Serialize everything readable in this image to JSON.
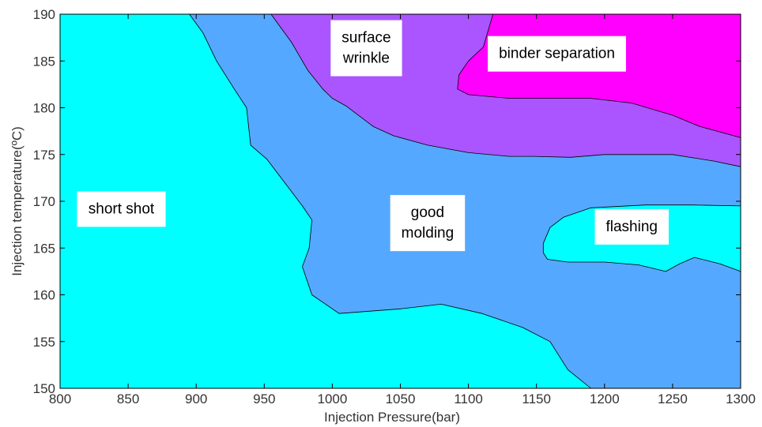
{
  "chart_data": {
    "type": "contour",
    "title": "",
    "xlabel": "Injection Pressure(bar)",
    "ylabel": "Injection temperature(ºC)",
    "xlim": [
      800,
      1300
    ],
    "ylim": [
      150,
      190
    ],
    "x_ticks": [
      800,
      850,
      900,
      950,
      1000,
      1050,
      1100,
      1150,
      1200,
      1250,
      1300
    ],
    "y_ticks": [
      150,
      155,
      160,
      165,
      170,
      175,
      180,
      185,
      190
    ],
    "grid": false,
    "regions": [
      {
        "name": "good molding",
        "label_lines": [
          "good",
          "molding"
        ],
        "color": "#55a8ff",
        "label_anchor": [
          1070,
          168.3
        ],
        "boundary": []
      },
      {
        "name": "short shot",
        "label_lines": [
          "short shot"
        ],
        "color": "#00ffff",
        "label_anchor": [
          845,
          168.7
        ],
        "boundary": [
          [
            800,
            150
          ],
          [
            800,
            190
          ],
          [
            895,
            190
          ],
          [
            905,
            188
          ],
          [
            915,
            185
          ],
          [
            928,
            182
          ],
          [
            937,
            180
          ],
          [
            940,
            176
          ],
          [
            952,
            174.5
          ],
          [
            965,
            172
          ],
          [
            978,
            169.5
          ],
          [
            985,
            168
          ],
          [
            983,
            165
          ],
          [
            978,
            163
          ],
          [
            985,
            160
          ],
          [
            1005,
            158
          ],
          [
            1050,
            158.5
          ],
          [
            1080,
            159
          ],
          [
            1110,
            158
          ],
          [
            1140,
            156.5
          ],
          [
            1160,
            155
          ],
          [
            1173,
            152
          ],
          [
            1190,
            150
          ]
        ]
      },
      {
        "name": "surface wrinkle",
        "label_lines": [
          "surface",
          "wrinkle"
        ],
        "color": "#aa55ff",
        "label_anchor": [
          1025,
          187
        ],
        "boundary": [
          [
            955,
            190
          ],
          [
            1300,
            190
          ],
          [
            1300,
            173.7
          ],
          [
            1280,
            174.3
          ],
          [
            1250,
            175
          ],
          [
            1200,
            175
          ],
          [
            1175,
            174.7
          ],
          [
            1148,
            174.8
          ],
          [
            1130,
            174.8
          ],
          [
            1100,
            175.2
          ],
          [
            1070,
            176
          ],
          [
            1045,
            177
          ],
          [
            1030,
            178
          ],
          [
            1010,
            180.2
          ],
          [
            1000,
            181
          ],
          [
            993,
            182
          ],
          [
            982,
            184
          ],
          [
            970,
            187
          ]
        ]
      },
      {
        "name": "binder separation",
        "label_lines": [
          "binder separation"
        ],
        "color": "#ff00ff",
        "label_anchor": [
          1165,
          185.3
        ],
        "boundary": [
          [
            1118,
            190
          ],
          [
            1300,
            190
          ],
          [
            1300,
            176.8
          ],
          [
            1270,
            178
          ],
          [
            1250,
            179.2
          ],
          [
            1220,
            180.5
          ],
          [
            1190,
            181
          ],
          [
            1155,
            181
          ],
          [
            1130,
            181
          ],
          [
            1100,
            181.4
          ],
          [
            1092,
            182
          ],
          [
            1093,
            183.5
          ],
          [
            1100,
            185
          ],
          [
            1111,
            186.5
          ],
          [
            1115,
            188.5
          ]
        ]
      },
      {
        "name": "flashing",
        "label_lines": [
          "flashing"
        ],
        "color": "#00ffff",
        "label_anchor": [
          1220,
          166.8
        ],
        "boundary": [
          [
            1155,
            164.5
          ],
          [
            1155,
            165.5
          ],
          [
            1160,
            167.2
          ],
          [
            1170,
            168.3
          ],
          [
            1190,
            169.3
          ],
          [
            1230,
            169.6
          ],
          [
            1265,
            169.6
          ],
          [
            1300,
            169.5
          ],
          [
            1300,
            162.5
          ],
          [
            1285,
            163.3
          ],
          [
            1266,
            164
          ],
          [
            1255,
            163.3
          ],
          [
            1245,
            162.5
          ],
          [
            1225,
            163.2
          ],
          [
            1200,
            163.5
          ],
          [
            1173,
            163.5
          ],
          [
            1158,
            163.8
          ]
        ]
      }
    ]
  }
}
